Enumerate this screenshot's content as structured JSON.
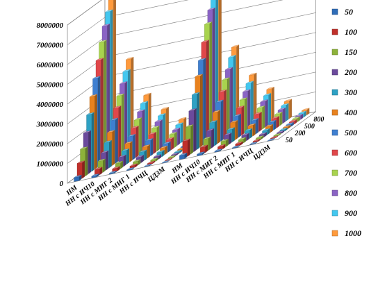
{
  "chart_data": {
    "type": "bar",
    "subtype": "3d-column",
    "title": "",
    "xlabel": "",
    "ylabel": "",
    "ylim": [
      0,
      8000000
    ],
    "y_ticks": [
      "0",
      "1000000",
      "2000000",
      "3000000",
      "4000000",
      "5000000",
      "6000000",
      "7000000",
      "8000000"
    ],
    "depth_ticks": [
      "50",
      "200",
      "500",
      "800"
    ],
    "grid": true,
    "legend_position": "right",
    "categories": [
      "НМ",
      "НН с ИЧ10",
      "НН с МИГ 2",
      "НН с МИГ 1",
      "НН с ИЧЦ",
      "ЦДЗМ",
      "НМ",
      "НН с ИЧ10",
      "НН с МИГ 2",
      "НН с МИГ 1",
      "НН с ИЧЦ",
      "ЦДЗМ"
    ],
    "series": [
      {
        "name": "50",
        "values": [
          200000,
          80000,
          40000,
          30000,
          20000,
          10000,
          200000,
          80000,
          40000,
          30000,
          20000,
          10000
        ]
      },
      {
        "name": "100",
        "values": [
          800000,
          300000,
          150000,
          100000,
          50000,
          20000,
          800000,
          300000,
          150000,
          100000,
          50000,
          20000
        ]
      },
      {
        "name": "150",
        "values": [
          1400000,
          600000,
          300000,
          200000,
          100000,
          40000,
          1400000,
          600000,
          300000,
          200000,
          100000,
          40000
        ]
      },
      {
        "name": "200",
        "values": [
          2100000,
          900000,
          500000,
          300000,
          150000,
          60000,
          2100000,
          900000,
          500000,
          300000,
          150000,
          60000
        ]
      },
      {
        "name": "300",
        "values": [
          2900000,
          1300000,
          700000,
          450000,
          250000,
          80000,
          2800000,
          1200000,
          650000,
          420000,
          230000,
          80000
        ]
      },
      {
        "name": "400",
        "values": [
          3700000,
          1700000,
          950000,
          600000,
          350000,
          100000,
          3600000,
          1600000,
          900000,
          550000,
          320000,
          100000
        ]
      },
      {
        "name": "500",
        "values": [
          4500000,
          2200000,
          1200000,
          800000,
          450000,
          120000,
          4300000,
          2000000,
          1100000,
          700000,
          420000,
          120000
        ]
      },
      {
        "name": "600",
        "values": [
          5300000,
          2700000,
          1500000,
          1000000,
          550000,
          150000,
          5100000,
          2400000,
          1400000,
          900000,
          500000,
          150000
        ]
      },
      {
        "name": "700",
        "values": [
          6100000,
          3200000,
          1800000,
          1200000,
          700000,
          180000,
          5900000,
          2900000,
          1700000,
          1100000,
          600000,
          180000
        ]
      },
      {
        "name": "800",
        "values": [
          6800000,
          3700000,
          2100000,
          1400000,
          800000,
          200000,
          6500000,
          3300000,
          2000000,
          1300000,
          700000,
          200000
        ]
      },
      {
        "name": "900",
        "values": [
          7400000,
          4200000,
          2400000,
          1600000,
          950000,
          230000,
          7000000,
          3800000,
          2300000,
          1500000,
          800000,
          230000
        ]
      },
      {
        "name": "1000",
        "values": [
          7900000,
          4700000,
          2700000,
          1800000,
          1100000,
          260000,
          7400000,
          4200000,
          2600000,
          1700000,
          900000,
          260000
        ]
      }
    ],
    "colors": [
      "#2f6db8",
      "#c0302b",
      "#8db23a",
      "#6b4a9c",
      "#2ea1c4",
      "#e8821e",
      "#3f7fd0",
      "#e0474a",
      "#a8d34e",
      "#8a63c4",
      "#43c7ef",
      "#ff9a3c"
    ]
  }
}
